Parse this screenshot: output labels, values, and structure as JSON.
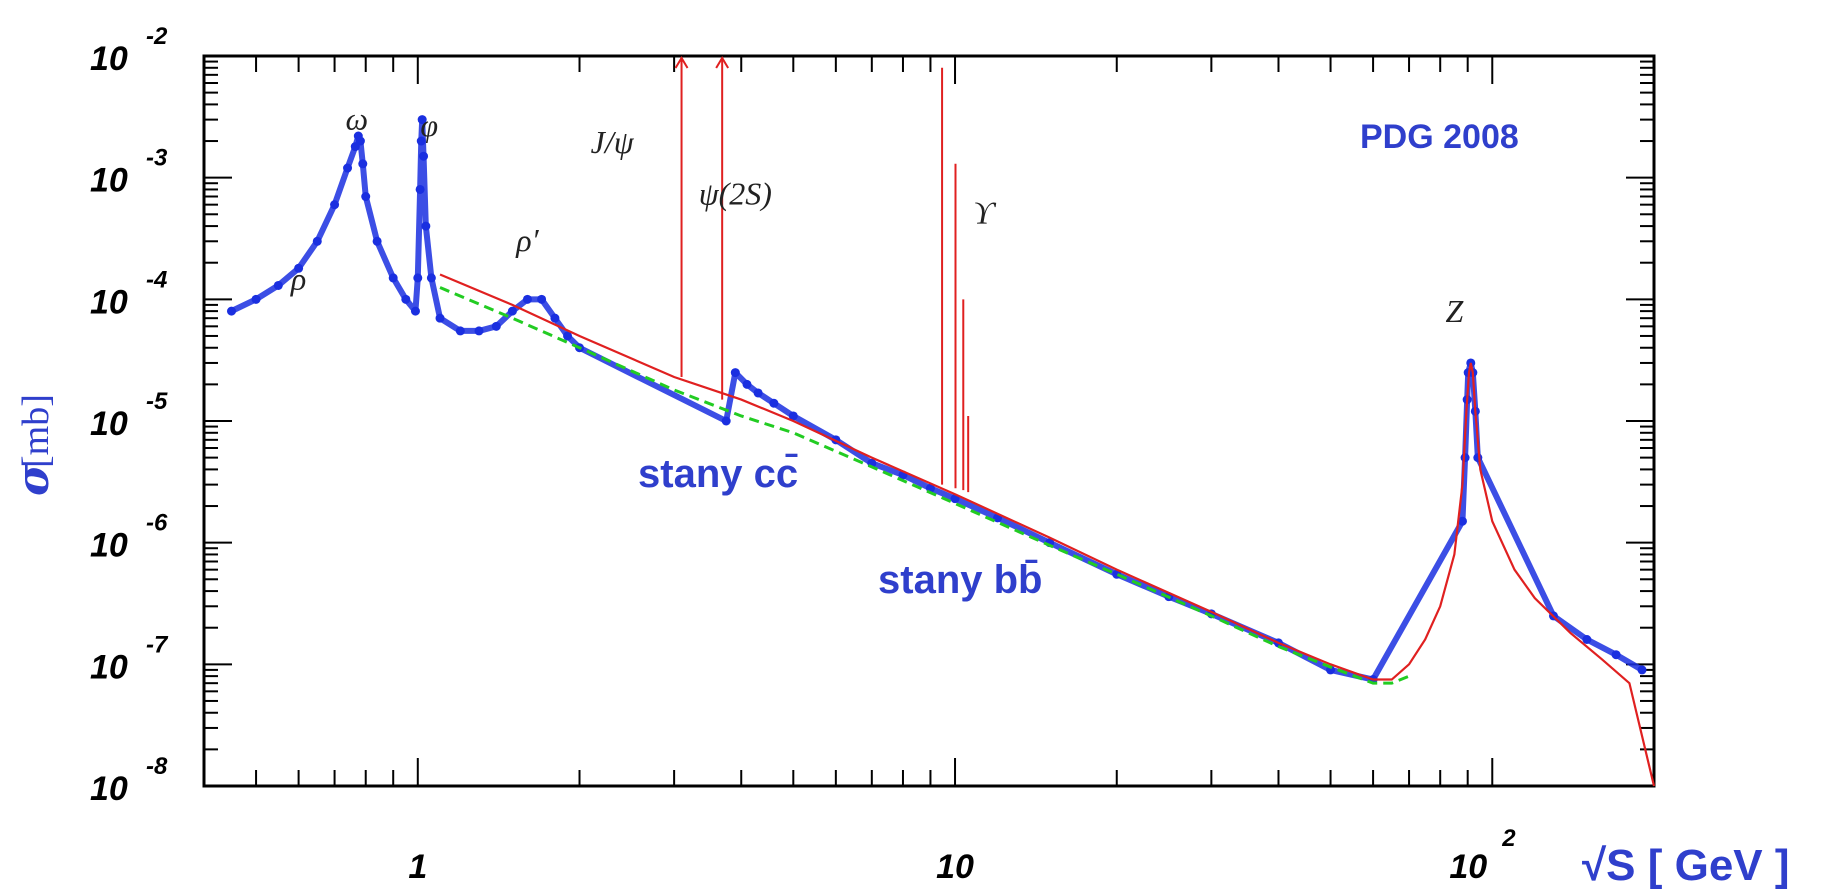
{
  "chart_data": {
    "type": "line",
    "title": "",
    "xlabel": "√S [ GeV ]",
    "ylabel_symbol": "σ",
    "ylabel_unit": "[mb]",
    "xscale": "log",
    "yscale": "log",
    "xlim": [
      0.4,
      200
    ],
    "ylim": [
      1e-08,
      0.01
    ],
    "grid": false,
    "x_ticks": [
      {
        "base": "",
        "exp": "",
        "text": "1"
      },
      {
        "base": "",
        "exp": "",
        "text": "10"
      },
      {
        "base": "10",
        "exp": "2",
        "text": ""
      }
    ],
    "y_ticks": [
      {
        "base": "10",
        "exp": "-2"
      },
      {
        "base": "10",
        "exp": "-3"
      },
      {
        "base": "10",
        "exp": "-4"
      },
      {
        "base": "10",
        "exp": "-5"
      },
      {
        "base": "10",
        "exp": "-6"
      },
      {
        "base": "10",
        "exp": "-7"
      },
      {
        "base": "10",
        "exp": "-8"
      }
    ],
    "series": [
      {
        "color": "#1a2fe0",
        "style": "markers",
        "x": [
          0.45,
          0.5,
          0.55,
          0.6,
          0.65,
          0.7,
          0.74,
          0.765,
          0.775,
          0.782,
          0.79,
          0.8,
          0.84,
          0.9,
          0.95,
          0.99,
          1.0,
          1.01,
          1.015,
          1.019,
          1.025,
          1.035,
          1.06,
          1.1,
          1.2,
          1.3,
          1.4,
          1.5,
          1.6,
          1.7,
          1.8,
          1.9,
          2.0,
          3.75,
          3.9,
          4.1,
          4.3,
          4.6,
          5.0,
          6.0,
          7.0,
          8.0,
          9.0,
          10.0,
          12.0,
          15.0,
          20.0,
          25.0,
          30.0,
          40.0,
          50.0,
          60.0,
          88.0,
          89.0,
          89.8,
          90.2,
          91.2,
          92.0,
          93.0,
          94.0,
          130.0,
          150.0,
          170.0,
          190.0
        ],
        "y": [
          8e-05,
          0.0001,
          0.00013,
          0.00018,
          0.0003,
          0.0006,
          0.0012,
          0.0018,
          0.0022,
          0.002,
          0.0013,
          0.0007,
          0.0003,
          0.00015,
          0.0001,
          8e-05,
          0.00015,
          0.0008,
          0.002,
          0.003,
          0.0015,
          0.0004,
          0.00015,
          7e-05,
          5.5e-05,
          5.5e-05,
          6e-05,
          8e-05,
          0.0001,
          0.0001,
          7e-05,
          5e-05,
          4e-05,
          1e-05,
          2.5e-05,
          2e-05,
          1.7e-05,
          1.4e-05,
          1.1e-05,
          7e-06,
          4.5e-06,
          3.6e-06,
          2.8e-06,
          2.3e-06,
          1.6e-06,
          1e-06,
          5.5e-07,
          3.6e-07,
          2.6e-07,
          1.5e-07,
          9e-08,
          7.5e-08,
          1.5e-06,
          5e-06,
          1.5e-05,
          2.5e-05,
          3e-05,
          2.5e-05,
          1.2e-05,
          5e-06,
          2.5e-07,
          1.6e-07,
          1.2e-07,
          9e-08
        ]
      },
      {
        "color": "#e02020",
        "style": "line",
        "x": [
          1.1,
          1.5,
          2.0,
          3.0,
          4.0,
          5.0,
          7.0,
          10.0,
          15.0,
          20.0,
          30.0,
          40.0,
          50.0,
          60.0,
          65.0,
          70.0,
          75.0,
          80.0,
          85.0,
          88.0,
          89.5,
          90.5,
          91.2,
          92.0,
          93.0,
          95.0,
          100.0,
          110.0,
          120.0,
          140.0,
          160.0,
          180.0,
          200.0
        ],
        "y": [
          0.00016,
          9e-05,
          5e-05,
          2.3e-05,
          1.5e-05,
          1e-05,
          5e-06,
          2.5e-06,
          1.1e-06,
          6e-07,
          2.7e-07,
          1.5e-07,
          1e-07,
          7.5e-08,
          7.5e-08,
          1e-07,
          1.6e-07,
          3e-07,
          8e-07,
          3e-06,
          1.2e-05,
          2.5e-05,
          3e-05,
          2.5e-05,
          1.2e-05,
          4e-06,
          1.5e-06,
          6e-07,
          3.5e-07,
          1.8e-07,
          1.1e-07,
          7e-08,
          1e-08
        ]
      },
      {
        "color": "#22cc22",
        "style": "dashed",
        "x": [
          1.1,
          1.5,
          2.0,
          3.0,
          4.0,
          5.0,
          7.0,
          10.0,
          15.0,
          20.0,
          30.0,
          40.0,
          50.0,
          60.0,
          65.0,
          70.0
        ],
        "y": [
          0.000125,
          7e-05,
          4e-05,
          1.8e-05,
          1.1e-05,
          8e-06,
          4.2e-06,
          2.1e-06,
          9.5e-07,
          5.5e-07,
          2.5e-07,
          1.4e-07,
          9.5e-08,
          7e-08,
          7e-08,
          8e-08
        ]
      }
    ],
    "spikes": [
      {
        "x": 3.097,
        "y_top": 0.01,
        "y_base": 2.3e-05,
        "color": "#e02020",
        "arrow": true
      },
      {
        "x": 3.686,
        "y_top": 0.01,
        "y_base": 1.5e-05,
        "color": "#e02020",
        "arrow": true
      },
      {
        "x": 9.46,
        "y_top": 0.008,
        "y_base": 3e-06,
        "color": "#e02020",
        "arrow": false
      },
      {
        "x": 10.02,
        "y_top": 0.0013,
        "y_base": 2.8e-06,
        "color": "#e02020",
        "arrow": false
      },
      {
        "x": 10.36,
        "y_top": 0.0001,
        "y_base": 2.7e-06,
        "color": "#e02020",
        "arrow": false
      },
      {
        "x": 10.58,
        "y_top": 1.1e-05,
        "y_base": 2.6e-06,
        "color": "#e02020",
        "arrow": false
      }
    ],
    "annotations": [
      {
        "text": "ρ",
        "x": 0.6,
        "y": 0.00012
      },
      {
        "text": "ω",
        "x": 0.77,
        "y": 0.0025
      },
      {
        "text": "φ",
        "x": 1.05,
        "y": 0.0022
      },
      {
        "text": "J/ψ",
        "x": 2.3,
        "y": 0.0016
      },
      {
        "text": "ψ(2S)",
        "x": 3.9,
        "y": 0.0006
      },
      {
        "text": "ρ′",
        "x": 1.6,
        "y": 0.00025
      },
      {
        "text": "ϒ",
        "x": 11.3,
        "y": 0.00042
      },
      {
        "text": "Z",
        "x": 85.0,
        "y": 6.5e-05
      }
    ],
    "notes": {
      "pdg": "PDG 2008",
      "cc": "stany cc̄",
      "bb": "stany bb̄"
    }
  }
}
